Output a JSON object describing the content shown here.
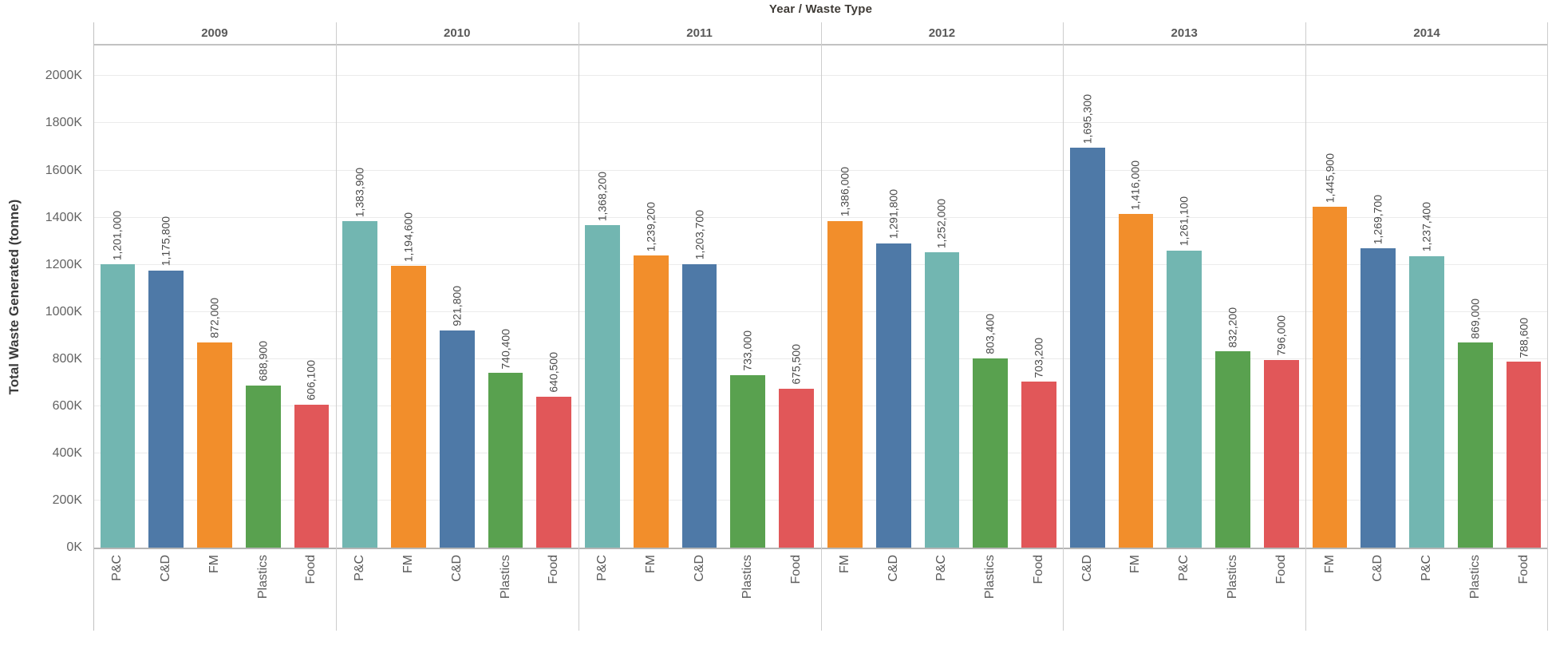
{
  "chart_data": {
    "type": "bar",
    "title": "Year / Waste Type",
    "ylabel": "Total Waste Generated (tonne)",
    "xlabel": "",
    "ylim": [
      0,
      2130000
    ],
    "ytick_step": 200000,
    "ytick_labels": [
      "0K",
      "200K",
      "400K",
      "600K",
      "800K",
      "1000K",
      "1200K",
      "1400K",
      "1600K",
      "1800K",
      "2000K"
    ],
    "grid": true,
    "legend_position": "none",
    "label_orientation": "vertical-bottom-to-top",
    "colors": {
      "P&C": "#72b6b1",
      "C&D": "#4e79a7",
      "FM": "#f28e2b",
      "Plastics": "#59a14f",
      "Food": "#e15759"
    },
    "facets": [
      {
        "year": "2009",
        "bars": [
          {
            "category": "P&C",
            "value": 1201000,
            "label": "1,201,000"
          },
          {
            "category": "C&D",
            "value": 1175800,
            "label": "1,175,800"
          },
          {
            "category": "FM",
            "value": 872000,
            "label": "872,000"
          },
          {
            "category": "Plastics",
            "value": 688900,
            "label": "688,900"
          },
          {
            "category": "Food",
            "value": 606100,
            "label": "606,100"
          }
        ]
      },
      {
        "year": "2010",
        "bars": [
          {
            "category": "P&C",
            "value": 1383900,
            "label": "1,383,900"
          },
          {
            "category": "FM",
            "value": 1194600,
            "label": "1,194,600"
          },
          {
            "category": "C&D",
            "value": 921800,
            "label": "921,800"
          },
          {
            "category": "Plastics",
            "value": 740400,
            "label": "740,400"
          },
          {
            "category": "Food",
            "value": 640500,
            "label": "640,500"
          }
        ]
      },
      {
        "year": "2011",
        "bars": [
          {
            "category": "P&C",
            "value": 1368200,
            "label": "1,368,200"
          },
          {
            "category": "FM",
            "value": 1239200,
            "label": "1,239,200"
          },
          {
            "category": "C&D",
            "value": 1203700,
            "label": "1,203,700"
          },
          {
            "category": "Plastics",
            "value": 733000,
            "label": "733,000"
          },
          {
            "category": "Food",
            "value": 675500,
            "label": "675,500"
          }
        ]
      },
      {
        "year": "2012",
        "bars": [
          {
            "category": "FM",
            "value": 1386000,
            "label": "1,386,000"
          },
          {
            "category": "C&D",
            "value": 1291800,
            "label": "1,291,800"
          },
          {
            "category": "P&C",
            "value": 1252000,
            "label": "1,252,000"
          },
          {
            "category": "Plastics",
            "value": 803400,
            "label": "803,400"
          },
          {
            "category": "Food",
            "value": 703200,
            "label": "703,200"
          }
        ]
      },
      {
        "year": "2013",
        "bars": [
          {
            "category": "C&D",
            "value": 1695300,
            "label": "1,695,300"
          },
          {
            "category": "FM",
            "value": 1416000,
            "label": "1,416,000"
          },
          {
            "category": "P&C",
            "value": 1261100,
            "label": "1,261,100"
          },
          {
            "category": "Plastics",
            "value": 832200,
            "label": "832,200"
          },
          {
            "category": "Food",
            "value": 796000,
            "label": "796,000"
          }
        ]
      },
      {
        "year": "2014",
        "bars": [
          {
            "category": "FM",
            "value": 1445900,
            "label": "1,445,900"
          },
          {
            "category": "C&D",
            "value": 1269700,
            "label": "1,269,700"
          },
          {
            "category": "P&C",
            "value": 1237400,
            "label": "1,237,400"
          },
          {
            "category": "Plastics",
            "value": 869000,
            "label": "869,000"
          },
          {
            "category": "Food",
            "value": 788600,
            "label": "788,600"
          }
        ]
      }
    ]
  }
}
